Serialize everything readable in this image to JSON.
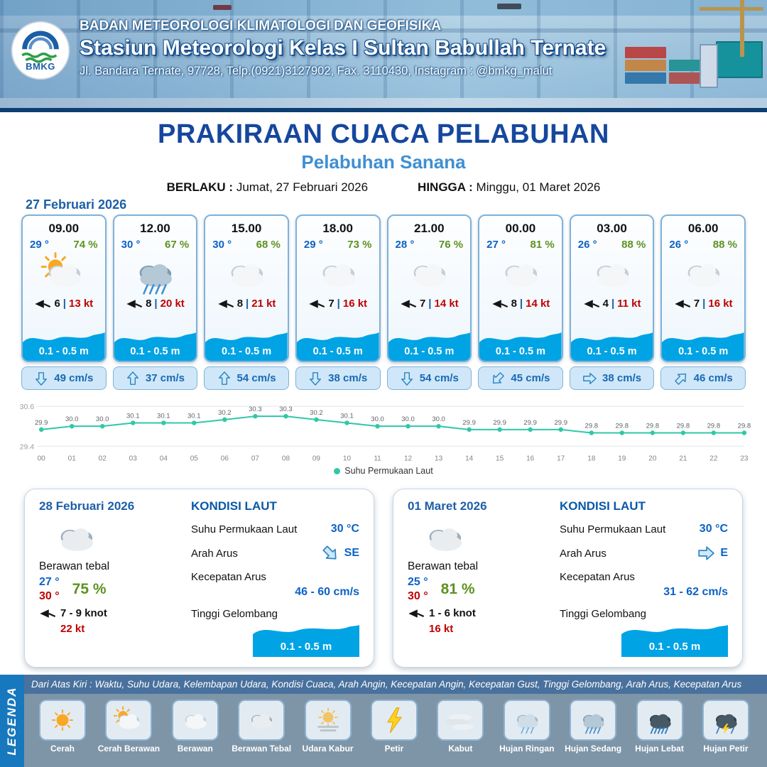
{
  "header": {
    "logo": "BMKG",
    "org": "BADAN METEOROLOGI KLIMATOLOGI DAN GEOFISIKA",
    "station": "Stasiun Meteorologi Kelas I Sultan Babullah Ternate",
    "address": "Jl. Bandara Ternate, 97728, Telp.(0921)3127902, Fax. 3110430, Instagram : @bmkg_malut"
  },
  "title": {
    "main": "PRAKIRAAN CUACA PELABUHAN",
    "subtitle": "Pelabuhan Sanana",
    "valid_from_label": "BERLAKU :",
    "valid_from": "Jumat, 27 Februari 2026",
    "valid_to_label": "HINGGA :",
    "valid_to": "Minggu, 01 Maret 2026"
  },
  "ui": {
    "separator": "|"
  },
  "forecast": {
    "date": "27 Februari 2026",
    "cards": [
      {
        "time": "09.00",
        "temp": "29 °",
        "humidity": "74 %",
        "icon": "cerah-berawan",
        "wind": "6",
        "gust": "13 kt",
        "wave": "0.1 - 0.5 m",
        "current_speed": "49 cm/s",
        "current_dir": "S",
        "arrow_deg": 180
      },
      {
        "time": "12.00",
        "temp": "30 °",
        "humidity": "67 %",
        "icon": "hujan-sedang",
        "wind": "8",
        "gust": "20 kt",
        "wave": "0.1 - 0.5 m",
        "current_speed": "37 cm/s",
        "current_dir": "N",
        "arrow_deg": 0
      },
      {
        "time": "15.00",
        "temp": "30 °",
        "humidity": "68 %",
        "icon": "berawan",
        "wind": "8",
        "gust": "21 kt",
        "wave": "0.1 - 0.5 m",
        "current_speed": "54 cm/s",
        "current_dir": "N",
        "arrow_deg": 0
      },
      {
        "time": "18.00",
        "temp": "29 °",
        "humidity": "73 %",
        "icon": "berawan",
        "wind": "7",
        "gust": "16 kt",
        "wave": "0.1 - 0.5 m",
        "current_speed": "38 cm/s",
        "current_dir": "S",
        "arrow_deg": 180
      },
      {
        "time": "21.00",
        "temp": "28 °",
        "humidity": "76 %",
        "icon": "berawan",
        "wind": "7",
        "gust": "14 kt",
        "wave": "0.1 - 0.5 m",
        "current_speed": "54 cm/s",
        "current_dir": "S",
        "arrow_deg": 180
      },
      {
        "time": "00.00",
        "temp": "27 °",
        "humidity": "81 %",
        "icon": "berawan",
        "wind": "8",
        "gust": "14 kt",
        "wave": "0.1 - 0.5 m",
        "current_speed": "45 cm/s",
        "current_dir": "SW",
        "arrow_deg": 225
      },
      {
        "time": "03.00",
        "temp": "26 °",
        "humidity": "88 %",
        "icon": "berawan",
        "wind": "4",
        "gust": "11 kt",
        "wave": "0.1 - 0.5 m",
        "current_speed": "38 cm/s",
        "current_dir": "E",
        "arrow_deg": 90
      },
      {
        "time": "06.00",
        "temp": "26 °",
        "humidity": "88 %",
        "icon": "berawan",
        "wind": "7",
        "gust": "16 kt",
        "wave": "0.1 - 0.5 m",
        "current_speed": "46 cm/s",
        "current_dir": "NE",
        "arrow_deg": 45
      }
    ]
  },
  "chart_data": {
    "type": "line",
    "title": "",
    "x": [
      "00",
      "01",
      "02",
      "03",
      "04",
      "05",
      "06",
      "07",
      "08",
      "09",
      "10",
      "11",
      "12",
      "13",
      "14",
      "15",
      "16",
      "17",
      "18",
      "19",
      "20",
      "21",
      "22",
      "23"
    ],
    "series": [
      {
        "name": "Suhu Permukaan Laut",
        "values": [
          29.9,
          30.0,
          30.0,
          30.1,
          30.1,
          30.1,
          30.2,
          30.3,
          30.3,
          30.2,
          30.1,
          30.0,
          30.0,
          30.0,
          29.9,
          29.9,
          29.9,
          29.9,
          29.8,
          29.8,
          29.8,
          29.8,
          29.8,
          29.8
        ]
      }
    ],
    "ylim": [
      29.4,
      30.6
    ],
    "line_color": "#2fc8a8",
    "legend_position": "bottom",
    "grid": "horizontal-minimal"
  },
  "day_cards": [
    {
      "date": "28 Februari 2026",
      "icon": "berawan-tebal",
      "condition": "Berawan tebal",
      "temp_min": "27 °",
      "temp_max": "30 °",
      "humidity": "75 %",
      "wind": "7 - 9 knot",
      "gust": "22 kt",
      "sea_title": "KONDISI LAUT",
      "sst_label": "Suhu Permukaan Laut",
      "sst": "30 °C",
      "current_dir_label": "Arah Arus",
      "current_dir": "SE",
      "arrow_deg": 135,
      "current_speed_label": "Kecepatan Arus",
      "current_speed": "46 - 60 cm/s",
      "wave_label": "Tinggi Gelombang",
      "wave": "0.1 - 0.5 m"
    },
    {
      "date": "01 Maret 2026",
      "icon": "berawan-tebal",
      "condition": "Berawan tebal",
      "temp_min": "25 °",
      "temp_max": "30 °",
      "humidity": "81 %",
      "wind": "1 - 6 knot",
      "gust": "16 kt",
      "sea_title": "KONDISI LAUT",
      "sst_label": "Suhu Permukaan Laut",
      "sst": "30 °C",
      "current_dir_label": "Arah Arus",
      "current_dir": "E",
      "arrow_deg": 90,
      "current_speed_label": "Kecepatan Arus",
      "current_speed": "31 - 62 cm/s",
      "wave_label": "Tinggi Gelombang",
      "wave": "0.1 - 0.5 m"
    }
  ],
  "legend": {
    "label": "LEGENDA",
    "info": "Dari Atas Kiri : Waktu, Suhu Udara, Kelembapan Udara, Kondisi Cuaca, Arah Angin, Kecepatan Angin, Kecepatan Gust, Tinggi Gelombang, Arah Arus, Kecepatan Arus",
    "items": [
      {
        "label": "Cerah",
        "icon": "cerah"
      },
      {
        "label": "Cerah Berawan",
        "icon": "cerah-berawan"
      },
      {
        "label": "Berawan",
        "icon": "berawan"
      },
      {
        "label": "Berawan Tebal",
        "icon": "berawan-tebal"
      },
      {
        "label": "Udara Kabur",
        "icon": "udara-kabur"
      },
      {
        "label": "Petir",
        "icon": "petir"
      },
      {
        "label": "Kabut",
        "icon": "kabut"
      },
      {
        "label": "Hujan Ringan",
        "icon": "hujan-ringan"
      },
      {
        "label": "Hujan Sedang",
        "icon": "hujan-sedang"
      },
      {
        "label": "Hujan Lebat",
        "icon": "hujan-lebat"
      },
      {
        "label": "Hujan Petir",
        "icon": "hujan-petir"
      }
    ]
  }
}
